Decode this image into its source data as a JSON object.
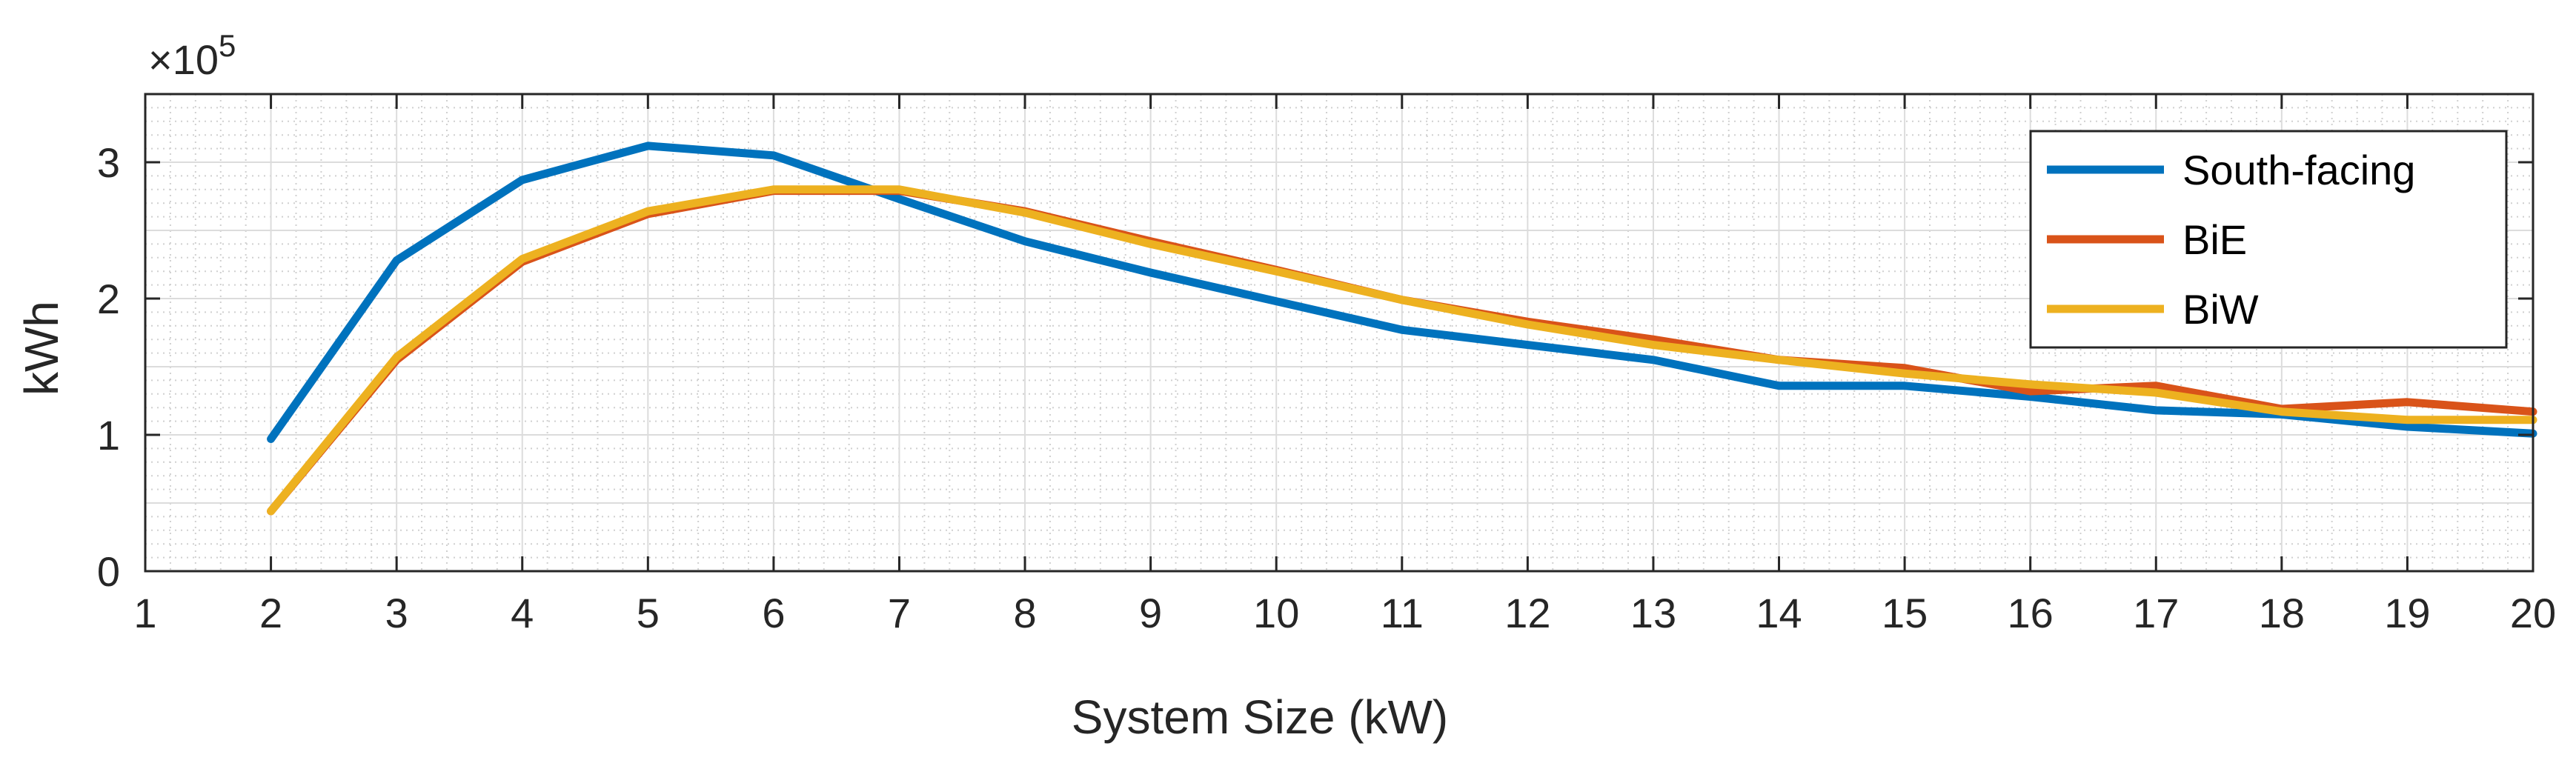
{
  "chart_data": {
    "type": "line",
    "title": "",
    "xlabel": "System Size (kW)",
    "ylabel": "kWh",
    "y_exponent_prefix": "×10",
    "y_exponent_power": "5",
    "xlim": [
      1,
      20
    ],
    "ylim": [
      0,
      3.5
    ],
    "y_scale": 100000,
    "grid": "major and minor",
    "legend_position": "top-right",
    "x_ticks": [
      "1",
      "2",
      "3",
      "4",
      "5",
      "6",
      "7",
      "8",
      "9",
      "10",
      "11",
      "12",
      "13",
      "14",
      "15",
      "16",
      "17",
      "18",
      "19",
      "20"
    ],
    "y_ticks": [
      "0",
      "1",
      "2",
      "3"
    ],
    "x": [
      2,
      3,
      4,
      5,
      6,
      7,
      8,
      9,
      10,
      11,
      12,
      13,
      14,
      15,
      16,
      17,
      18,
      19,
      20
    ],
    "series": [
      {
        "name": "South-facing",
        "color": "#0072BD",
        "values": [
          0.97,
          2.28,
          2.87,
          3.12,
          3.05,
          2.73,
          2.42,
          2.19,
          1.98,
          1.77,
          1.66,
          1.55,
          1.36,
          1.36,
          1.28,
          1.18,
          1.15,
          1.06,
          1.01
        ]
      },
      {
        "name": "BiE",
        "color": "#D95319",
        "values": [
          0.44,
          1.55,
          2.27,
          2.62,
          2.79,
          2.79,
          2.64,
          2.42,
          2.21,
          1.99,
          1.83,
          1.7,
          1.55,
          1.49,
          1.32,
          1.36,
          1.19,
          1.24,
          1.17
        ]
      },
      {
        "name": "BiW",
        "color": "#EDB120",
        "values": [
          0.44,
          1.57,
          2.29,
          2.64,
          2.8,
          2.8,
          2.63,
          2.4,
          2.2,
          1.99,
          1.81,
          1.66,
          1.55,
          1.45,
          1.37,
          1.31,
          1.17,
          1.11,
          1.11
        ]
      }
    ]
  }
}
